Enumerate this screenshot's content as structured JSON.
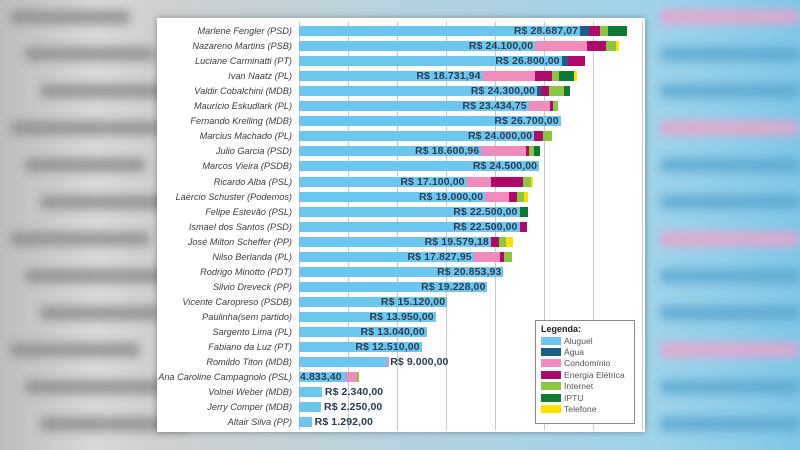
{
  "colors": {
    "Aluguel": "#6cc7f0",
    "Agua": "#1d5e86",
    "Condominio": "#f08bbd",
    "Energia": "#b0086b",
    "Internet": "#8cc63e",
    "IPTU": "#0f7a34",
    "Telefone": "#ffe000"
  },
  "legend": {
    "title": "Legenda:",
    "items": [
      {
        "key": "Aluguel",
        "label": "Aluguel"
      },
      {
        "key": "Agua",
        "label": "Água"
      },
      {
        "key": "Condominio",
        "label": "Condomínio"
      },
      {
        "key": "Energia",
        "label": "Energia Elétrica"
      },
      {
        "key": "Internet",
        "label": "Internet"
      },
      {
        "key": "IPTU",
        "label": "IPTU"
      },
      {
        "key": "Telefone",
        "label": "Telefone"
      }
    ]
  },
  "chart_data": {
    "type": "bar",
    "orientation": "horizontal",
    "stacked": true,
    "title": "",
    "xlabel": "",
    "ylabel": "",
    "xlim": [
      0,
      35000
    ],
    "grid": true,
    "grid_step": 5000,
    "legend_position": "bottom-right",
    "series_names": [
      "Aluguel",
      "Água",
      "Condomínio",
      "Energia Elétrica",
      "Internet",
      "IPTU",
      "Telefone"
    ],
    "categories": [
      "Marlene Fengler (PSD)",
      "Nazareno Martins (PSB)",
      "Luciane Carminatti (PT)",
      "Ivan Naatz (PL)",
      "Valdir Cobalchini (MDB)",
      "Maurício Eskudlark (PL)",
      "Fernando Krelling (MDB)",
      "Marcius Machado (PL)",
      "Julio Garcia (PSD)",
      "Marcos Vieira (PSDB)",
      "Ricardo Alba (PSL)",
      "Laércio Schuster (Podemos)",
      "Felipe Estevão (PSL)",
      "Ismael dos Santos (PSD)",
      "José Milton Scheffer (PP)",
      "Nilso Berlanda (PL)",
      "Rodrigo Minotto (PDT)",
      "Silvio Dreveck (PP)",
      "Vicente Caropreso (PSDB)",
      "Paulinha(sem partido)",
      "Sargento Lima (PL)",
      "Fabiano da Luz (PT)",
      "Romildo Titon (MDB)",
      "Ana Caroline Campagnolo (PSL)",
      "Volnei Weber (MDB)",
      "Jerry Comper (MDB)",
      "Altair Silva (PP)"
    ],
    "rows": [
      {
        "name": "Marlene Fengler (PSD)",
        "label": "R$ 28.687,07",
        "Aluguel": 28687.07,
        "Agua": 900,
        "Condominio": 0,
        "Energia": 1100,
        "Internet": 800,
        "IPTU": 2000,
        "Telefone": 0
      },
      {
        "name": "Nazareno Martins (PSB)",
        "label": "R$ 24.100,00",
        "Aluguel": 24100,
        "Agua": 0,
        "Condominio": 5300,
        "Energia": 1900,
        "Internet": 1100,
        "IPTU": 0,
        "Telefone": 300
      },
      {
        "name": "Luciane Carminatti (PT)",
        "label": "R$ 26.800,00",
        "Aluguel": 26800,
        "Agua": 600,
        "Condominio": 0,
        "Energia": 1800,
        "Internet": 0,
        "IPTU": 0,
        "Telefone": 0
      },
      {
        "name": "Ivan Naatz (PL)",
        "label": "R$ 18.731,94",
        "Aluguel": 18731.94,
        "Agua": 0,
        "Condominio": 5400,
        "Energia": 1700,
        "Internet": 700,
        "IPTU": 1500,
        "Telefone": 300
      },
      {
        "name": "Valdir Cobalchini (MDB)",
        "label": "R$ 24.300,00",
        "Aluguel": 24300,
        "Agua": 400,
        "Condominio": 0,
        "Energia": 800,
        "Internet": 1500,
        "IPTU": 700,
        "Telefone": 0
      },
      {
        "name": "Maurício Eskudlark (PL)",
        "label": "R$ 23.434,75",
        "Aluguel": 23434.75,
        "Agua": 0,
        "Condominio": 2200,
        "Energia": 300,
        "Internet": 500,
        "IPTU": 0,
        "Telefone": 0
      },
      {
        "name": "Fernando Krelling (MDB)",
        "label": "R$ 26.700,00",
        "Aluguel": 26700,
        "Agua": 0,
        "Condominio": 0,
        "Energia": 0,
        "Internet": 0,
        "IPTU": 0,
        "Telefone": 0
      },
      {
        "name": "Marcius Machado (PL)",
        "label": "R$ 24.000,00",
        "Aluguel": 24000,
        "Agua": 0,
        "Condominio": 0,
        "Energia": 900,
        "Internet": 900,
        "IPTU": 0,
        "Telefone": 0
      },
      {
        "name": "Julio Garcia (PSD)",
        "label": "R$ 18.600,96",
        "Aluguel": 18600.96,
        "Agua": 0,
        "Condominio": 4600,
        "Energia": 300,
        "Internet": 500,
        "IPTU": 600,
        "Telefone": 0
      },
      {
        "name": "Marcos Vieira (PSDB)",
        "label": "R$ 24.500,00",
        "Aluguel": 24500,
        "Agua": 0,
        "Condominio": 0,
        "Energia": 0,
        "Internet": 0,
        "IPTU": 0,
        "Telefone": 0
      },
      {
        "name": "Ricardo Alba (PSL)",
        "label": "R$ 17.100,00",
        "Aluguel": 17100,
        "Agua": 0,
        "Condominio": 2500,
        "Energia": 3300,
        "Internet": 800,
        "IPTU": 0,
        "Telefone": 200
      },
      {
        "name": "Laércio Schuster (Podemos)",
        "label": "R$ 19.000,00",
        "Aluguel": 19000,
        "Agua": 0,
        "Condominio": 2400,
        "Energia": 800,
        "Internet": 800,
        "IPTU": 0,
        "Telefone": 400
      },
      {
        "name": "Felipe Estevão (PSL)",
        "label": "R$ 22.500,00",
        "Aluguel": 22500,
        "Agua": 0,
        "Condominio": 0,
        "Energia": 0,
        "Internet": 0,
        "IPTU": 900,
        "Telefone": 0
      },
      {
        "name": "Ismael dos Santos (PSD)",
        "label": "R$ 22.500,00",
        "Aluguel": 22500,
        "Agua": 0,
        "Condominio": 0,
        "Energia": 800,
        "Internet": 0,
        "IPTU": 0,
        "Telefone": 0
      },
      {
        "name": "José Milton Scheffer (PP)",
        "label": "R$ 19.579,18",
        "Aluguel": 19579.18,
        "Agua": 0,
        "Condominio": 0,
        "Energia": 800,
        "Internet": 700,
        "IPTU": 0,
        "Telefone": 800
      },
      {
        "name": "Nilso Berlanda (PL)",
        "label": "R$ 17.827,95",
        "Aluguel": 17827.95,
        "Agua": 0,
        "Condominio": 2700,
        "Energia": 400,
        "Internet": 800,
        "IPTU": 0,
        "Telefone": 0
      },
      {
        "name": "Rodrigo Minotto (PDT)",
        "label": "R$ 20.853,93",
        "Aluguel": 20853.93,
        "Agua": 0,
        "Condominio": 0,
        "Energia": 0,
        "Internet": 0,
        "IPTU": 0,
        "Telefone": 0
      },
      {
        "name": "Silvio Dreveck (PP)",
        "label": "R$ 19.228,00",
        "Aluguel": 19228,
        "Agua": 0,
        "Condominio": 0,
        "Energia": 0,
        "Internet": 0,
        "IPTU": 0,
        "Telefone": 0
      },
      {
        "name": "Vicente Caropreso (PSDB)",
        "label": "R$ 15.120,00",
        "Aluguel": 15120,
        "Agua": 0,
        "Condominio": 0,
        "Energia": 0,
        "Internet": 0,
        "IPTU": 0,
        "Telefone": 0
      },
      {
        "name": "Paulinha(sem partido)",
        "label": "R$ 13.950,00",
        "Aluguel": 13950,
        "Agua": 0,
        "Condominio": 0,
        "Energia": 0,
        "Internet": 0,
        "IPTU": 0,
        "Telefone": 0
      },
      {
        "name": "Sargento Lima (PL)",
        "label": "R$ 13.040,00",
        "Aluguel": 13040,
        "Agua": 0,
        "Condominio": 0,
        "Energia": 0,
        "Internet": 0,
        "IPTU": 0,
        "Telefone": 0
      },
      {
        "name": "Fabiano da Luz (PT)",
        "label": "R$ 12.510,00",
        "Aluguel": 12510,
        "Agua": 0,
        "Condominio": 0,
        "Energia": 0,
        "Internet": 0,
        "IPTU": 0,
        "Telefone": 0
      },
      {
        "name": "Romildo Titon (MDB)",
        "label": "R$ 9.000,00",
        "Aluguel": 9000,
        "Agua": 0,
        "Condominio": 150,
        "Energia": 0,
        "Internet": 0,
        "IPTU": 0,
        "Telefone": 0
      },
      {
        "name": "Ana Caroline Campagnolo (PSL)",
        "label": "4.833,40",
        "Aluguel": 4833.4,
        "Agua": 0,
        "Condominio": 1100,
        "Energia": 0,
        "Internet": 200,
        "IPTU": 0,
        "Telefone": 0
      },
      {
        "name": "Volnei Weber (MDB)",
        "label": "R$ 2.340,00",
        "Aluguel": 2340,
        "Agua": 0,
        "Condominio": 0,
        "Energia": 0,
        "Internet": 0,
        "IPTU": 0,
        "Telefone": 0
      },
      {
        "name": "Jerry Comper (MDB)",
        "label": "R$ 2.250,00",
        "Aluguel": 2250,
        "Agua": 0,
        "Condominio": 0,
        "Energia": 0,
        "Internet": 0,
        "IPTU": 0,
        "Telefone": 0
      },
      {
        "name": "Altair Silva (PP)",
        "label": "R$ 1.292,00",
        "Aluguel": 1292,
        "Agua": 0,
        "Condominio": 0,
        "Energia": 0,
        "Internet": 0,
        "IPTU": 0,
        "Telefone": 0
      }
    ]
  }
}
